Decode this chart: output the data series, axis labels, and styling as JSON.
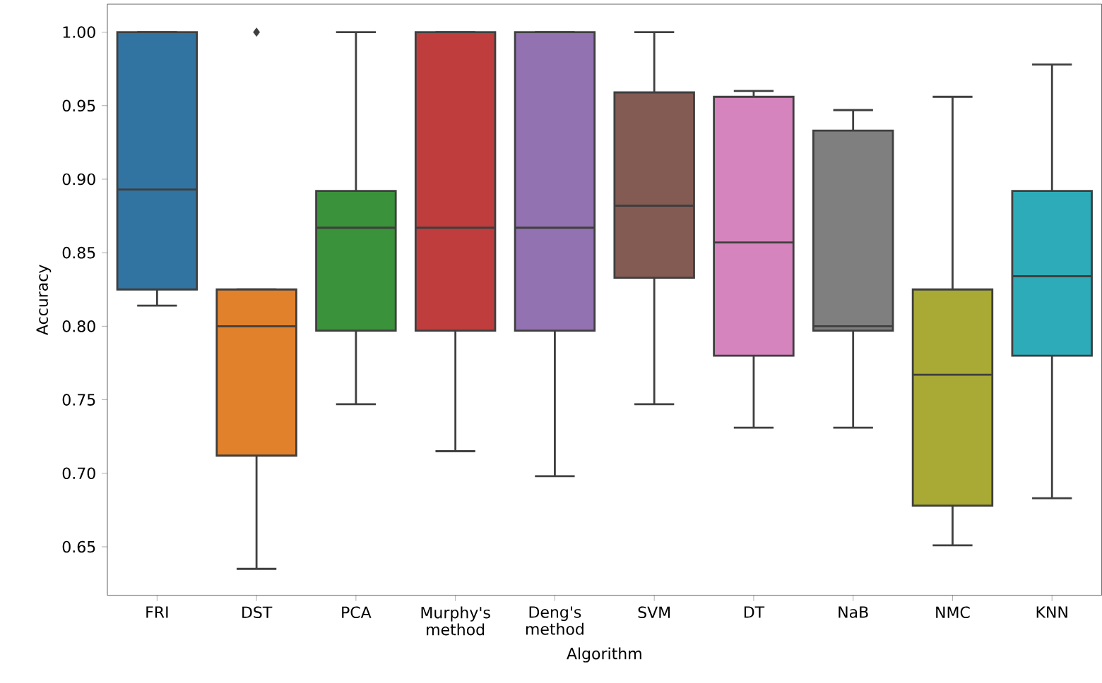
{
  "chart_data": {
    "type": "box",
    "xlabel": "Algorithm",
    "ylabel": "Accuracy",
    "categories": [
      "FRI",
      "DST",
      "PCA",
      "Murphy's method",
      "Deng's method",
      "SVM",
      "DT",
      "NaB",
      "NMC",
      "KNN"
    ],
    "colors": [
      "#3274a1",
      "#e1812c",
      "#3a923a",
      "#c03d3e",
      "#9372b2",
      "#845b53",
      "#d684bd",
      "#7f7f7f",
      "#a9aa35",
      "#2eabb8"
    ],
    "boxes": [
      {
        "low": 0.814,
        "q1": 0.825,
        "median": 0.893,
        "q3": 1.0,
        "high": 1.0
      },
      {
        "low": 0.635,
        "q1": 0.712,
        "median": 0.8,
        "q3": 0.825,
        "high": 0.825,
        "outliers": [
          1.0
        ]
      },
      {
        "low": 0.747,
        "q1": 0.797,
        "median": 0.867,
        "q3": 0.892,
        "high": 1.0
      },
      {
        "low": 0.715,
        "q1": 0.797,
        "median": 0.867,
        "q3": 1.0,
        "high": 1.0
      },
      {
        "low": 0.698,
        "q1": 0.797,
        "median": 0.867,
        "q3": 1.0,
        "high": 1.0
      },
      {
        "low": 0.747,
        "q1": 0.833,
        "median": 0.882,
        "q3": 0.959,
        "high": 1.0
      },
      {
        "low": 0.731,
        "q1": 0.78,
        "median": 0.857,
        "q3": 0.956,
        "high": 0.96
      },
      {
        "low": 0.731,
        "q1": 0.797,
        "median": 0.8,
        "q3": 0.933,
        "high": 0.947
      },
      {
        "low": 0.651,
        "q1": 0.678,
        "median": 0.767,
        "q3": 0.825,
        "high": 0.956
      },
      {
        "low": 0.683,
        "q1": 0.78,
        "median": 0.834,
        "q3": 0.892,
        "high": 0.978
      }
    ],
    "ylim": [
      0.617,
      1.019
    ],
    "yticks": [
      0.65,
      {
        "value": 0.7,
        "label": "0.70"
      },
      0.75,
      {
        "value": 0.8,
        "label": "0.80"
      },
      0.85,
      {
        "value": 0.9,
        "label": "0.90"
      },
      0.95,
      {
        "value": 1.0,
        "label": "1.00"
      }
    ],
    "marker": "diamond"
  }
}
